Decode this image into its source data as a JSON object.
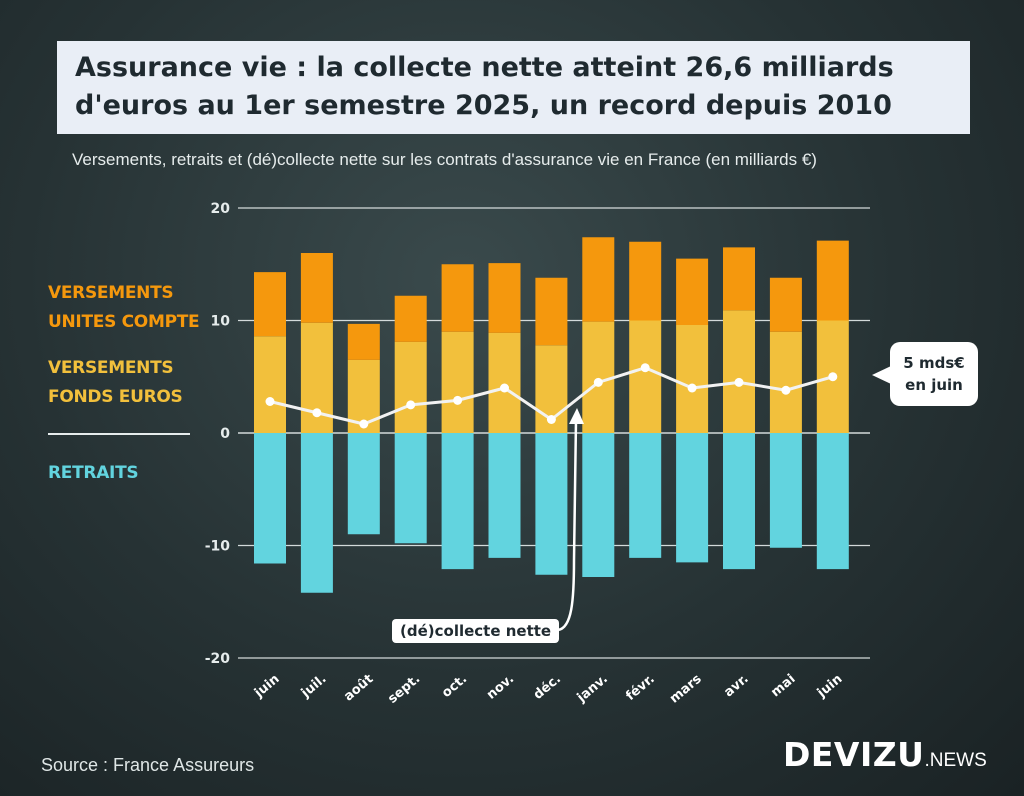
{
  "title": {
    "line1": "Assurance vie : la collecte nette atteint 26,6 milliards",
    "line2": "d'euros au 1er semestre 2025, un record depuis 2010"
  },
  "subtitle": "Versements, retraits et (dé)collecte nette sur les contrats d'assurance vie en France (en milliards €)",
  "legend": {
    "uc_line1": "VERSEMENTS",
    "uc_line2": "UNITES COMPTE",
    "euro_line1": "VERSEMENTS",
    "euro_line2": "FONDS EUROS",
    "retraits": "RETRAITS"
  },
  "annotations": {
    "callout_line1": "5 mds€",
    "callout_line2": "en juin",
    "net_label": "(dé)collecte nette"
  },
  "source": "Source : France Assureurs",
  "logo": {
    "main": "DEVIZU",
    "suffix": ".NEWS"
  },
  "colors": {
    "versements_uc": "#f5980d",
    "versements_fonds_euros": "#f2c03c",
    "retraits": "#62d4df",
    "net_line": "#f2f2f2",
    "legend_uc_text": "#f5980d",
    "legend_euro_text": "#f2c03c",
    "legend_retraits_text": "#62d4df"
  },
  "chart_data": {
    "type": "bar",
    "stacked": true,
    "categories": [
      "juin",
      "juil.",
      "août",
      "sept.",
      "oct.",
      "nov.",
      "déc.",
      "janv.",
      "févr.",
      "mars",
      "avr.",
      "mai",
      "juin"
    ],
    "series": [
      {
        "name": "VERSEMENTS FONDS EUROS",
        "values": [
          8.6,
          9.8,
          6.5,
          8.1,
          9.0,
          8.9,
          7.8,
          9.9,
          10.0,
          9.6,
          10.9,
          9.0,
          10.0
        ]
      },
      {
        "name": "VERSEMENTS UNITES COMPTE",
        "values": [
          5.7,
          6.2,
          3.2,
          4.1,
          6.0,
          6.2,
          6.0,
          7.5,
          7.0,
          5.9,
          5.6,
          4.8,
          7.1
        ]
      },
      {
        "name": "RETRAITS",
        "values": [
          -11.6,
          -14.2,
          -9.0,
          -9.8,
          -12.1,
          -11.1,
          -12.6,
          -12.8,
          -11.1,
          -11.5,
          -12.1,
          -10.2,
          -12.1
        ]
      },
      {
        "name": "(dé)collecte nette",
        "type": "line",
        "values": [
          2.8,
          1.8,
          0.8,
          2.5,
          2.9,
          4.0,
          1.2,
          4.5,
          5.8,
          4.0,
          4.5,
          3.8,
          5.0
        ]
      }
    ],
    "ylim": [
      -20,
      20
    ],
    "yticks": [
      20,
      10,
      0,
      -10,
      -20
    ],
    "grid": true
  }
}
